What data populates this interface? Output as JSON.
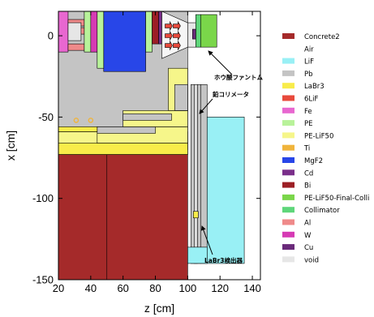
{
  "chart_data": {
    "type": "geometry-plot",
    "xlabel": "z [cm]",
    "ylabel": "x [cm]",
    "xlim": [
      20,
      145
    ],
    "ylim": [
      -150,
      15
    ],
    "xticks": [
      "20",
      "40",
      "60",
      "80",
      "100",
      "120",
      "140"
    ],
    "yticks": [
      "0",
      "-50",
      "-100",
      "-150"
    ],
    "annotations": [
      {
        "label": "ホウ酸ファントム",
        "z": 113,
        "x": -20
      },
      {
        "label": "鉛コリメータ",
        "z": 110,
        "x": -34
      },
      {
        "label": "LaBr3検出器",
        "z": 112,
        "x": -135
      }
    ],
    "legend": [
      {
        "name": "Concrete2",
        "color": "#a52a2a"
      },
      {
        "name": "Air",
        "color": "#ffffff"
      },
      {
        "name": "LiF",
        "color": "#99f0f5"
      },
      {
        "name": "Pb",
        "color": "#c4c4c4"
      },
      {
        "name": "LaBr3",
        "color": "#f8ec4a"
      },
      {
        "name": "6LiF",
        "color": "#e84a3c"
      },
      {
        "name": "Fe",
        "color": "#e867d0"
      },
      {
        "name": "PE",
        "color": "#b8f29a"
      },
      {
        "name": "PE-LiF50",
        "color": "#f6f68a"
      },
      {
        "name": "Ti",
        "color": "#f0b43c"
      },
      {
        "name": "MgF2",
        "color": "#2846e8"
      },
      {
        "name": "Cd",
        "color": "#7a2e8a"
      },
      {
        "name": "Bi",
        "color": "#9c1f25"
      },
      {
        "name": "PE-LiF50-Final-Colli",
        "color": "#7ad64a"
      },
      {
        "name": "Collimator",
        "color": "#5ed67a"
      },
      {
        "name": "Al",
        "color": "#ef8a8a"
      },
      {
        "name": "W",
        "color": "#d63ab4"
      },
      {
        "name": "Cu",
        "color": "#6a2a7a"
      },
      {
        "name": "void",
        "color": "#e6e6e6"
      }
    ]
  }
}
